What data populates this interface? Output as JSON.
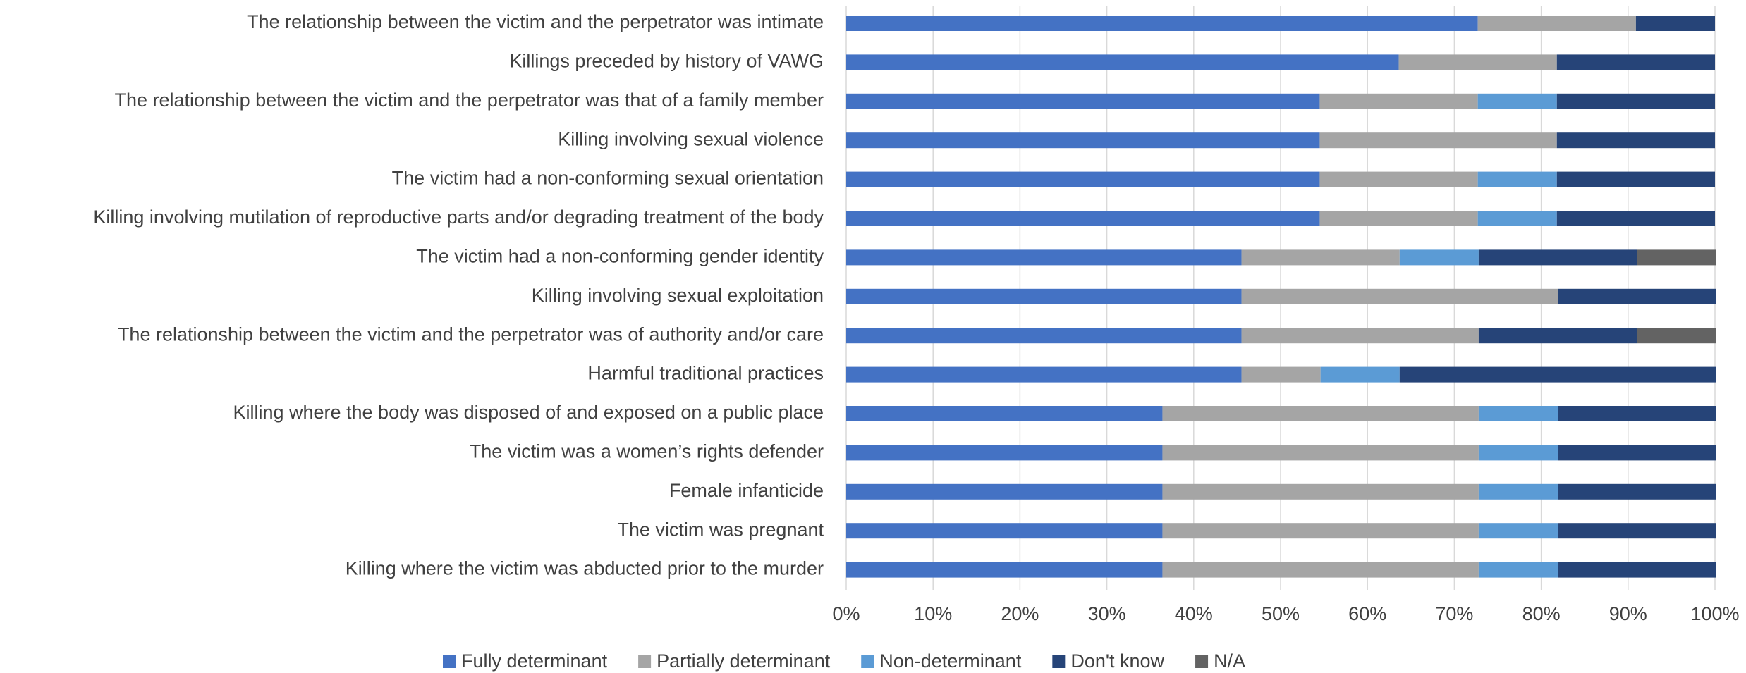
{
  "chart_data": {
    "type": "stacked-barh",
    "categories": [
      "The relationship between the victim and the perpetrator was intimate",
      "Killings preceded by history of VAWG",
      "The relationship between the victim and the perpetrator was that of a family member",
      "Killing involving sexual violence",
      "The victim had a non-conforming sexual orientation",
      "Killing involving mutilation of reproductive parts and/or degrading treatment of the body",
      "The victim had a non-conforming gender identity",
      "Killing involving sexual exploitation",
      "The relationship between the victim and the perpetrator was of authority and/or care",
      "Harmful traditional practices",
      "Killing where the body was disposed of and exposed on a public place",
      "The victim was a women’s rights defender",
      "Female infanticide",
      "The victim was pregnant",
      "Killing where the victim was abducted prior to the murder"
    ],
    "series": [
      {
        "name": "Fully determinant",
        "color": "#4472c4",
        "values": [
          72.7,
          63.6,
          54.5,
          54.5,
          54.5,
          54.5,
          45.5,
          45.5,
          45.5,
          45.5,
          36.4,
          36.4,
          36.4,
          36.4,
          36.4
        ]
      },
      {
        "name": "Partially determinant",
        "color": "#a5a5a5",
        "values": [
          18.2,
          18.2,
          18.2,
          27.3,
          18.2,
          18.2,
          18.2,
          36.4,
          27.3,
          9.1,
          36.4,
          36.4,
          36.4,
          36.4,
          36.4
        ]
      },
      {
        "name": "Non-determinant",
        "color": "#5b9bd5",
        "values": [
          null,
          null,
          9.1,
          null,
          9.1,
          9.1,
          9.1,
          null,
          null,
          9.1,
          9.1,
          9.1,
          9.1,
          9.1,
          9.1
        ]
      },
      {
        "name": "Don't know",
        "color": "#264478",
        "values": [
          9.1,
          18.2,
          18.2,
          18.2,
          18.2,
          18.2,
          18.2,
          18.2,
          18.2,
          36.4,
          18.2,
          18.2,
          18.2,
          18.2,
          18.2
        ]
      },
      {
        "name": "N/A",
        "color": "#636363",
        "values": [
          null,
          null,
          null,
          null,
          null,
          null,
          9.1,
          null,
          9.1,
          null,
          null,
          null,
          null,
          null,
          null
        ]
      }
    ],
    "xlim": [
      0,
      100
    ],
    "xticks": [
      {
        "value": 0,
        "label": "0%"
      },
      {
        "value": 10,
        "label": "10%"
      },
      {
        "value": 20,
        "label": "20%"
      },
      {
        "value": 30,
        "label": "30%"
      },
      {
        "value": 40,
        "label": "40%"
      },
      {
        "value": 50,
        "label": "50%"
      },
      {
        "value": 60,
        "label": "60%"
      },
      {
        "value": 70,
        "label": "70%"
      },
      {
        "value": 80,
        "label": "80%"
      },
      {
        "value": 90,
        "label": "90%"
      },
      {
        "value": 100,
        "label": "100%"
      }
    ],
    "grid": true,
    "legend": "bottom"
  }
}
